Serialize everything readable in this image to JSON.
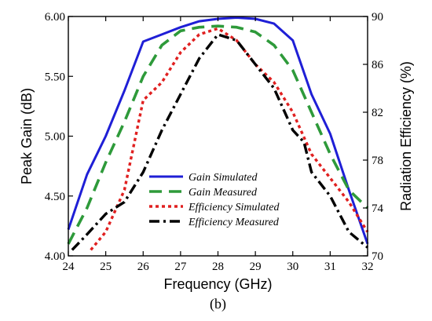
{
  "chart_data": {
    "type": "line",
    "caption": "(b)",
    "xlabel": "Frequency (GHz)",
    "ylabel_left": "Peak Gain (dB)",
    "ylabel_right": "Radiation Efficiency (%)",
    "xlim": [
      24,
      32
    ],
    "ylim_left": [
      4.0,
      6.0
    ],
    "ylim_right": [
      70,
      90
    ],
    "x_ticks": [
      "24",
      "25",
      "26",
      "27",
      "28",
      "29",
      "30",
      "31",
      "32"
    ],
    "y_left_ticks": [
      "4.00",
      "4.50",
      "5.00",
      "5.50",
      "6.00"
    ],
    "y_right_ticks": [
      "70",
      "74",
      "78",
      "82",
      "86",
      "90"
    ],
    "grid": false,
    "legend_position": "center-left",
    "series": [
      {
        "name": "Gain Simulated",
        "axis": "left",
        "color": "#1f1fd6",
        "style": "solid",
        "x": [
          24.0,
          24.5,
          25.0,
          25.5,
          26.0,
          26.5,
          27.0,
          27.5,
          28.0,
          28.5,
          29.0,
          29.5,
          30.0,
          30.5,
          31.0,
          31.5,
          32.0
        ],
        "y": [
          4.22,
          4.68,
          5.0,
          5.38,
          5.79,
          5.85,
          5.91,
          5.96,
          5.98,
          5.99,
          5.98,
          5.94,
          5.8,
          5.35,
          5.02,
          4.55,
          4.1
        ]
      },
      {
        "name": "Gain Measured",
        "axis": "left",
        "color": "#2e9a3a",
        "style": "dash",
        "x": [
          24.0,
          24.5,
          25.0,
          25.5,
          26.0,
          26.5,
          27.0,
          27.5,
          28.0,
          28.5,
          29.0,
          29.5,
          30.0,
          30.5,
          31.0,
          31.5,
          32.0
        ],
        "y": [
          4.1,
          4.4,
          4.78,
          5.12,
          5.5,
          5.76,
          5.88,
          5.91,
          5.92,
          5.91,
          5.87,
          5.76,
          5.55,
          5.2,
          4.85,
          4.55,
          4.4
        ]
      },
      {
        "name": "Efficiency Simulated",
        "axis": "right",
        "color": "#e02020",
        "style": "dot",
        "x": [
          24.6,
          25.0,
          25.5,
          26.0,
          26.5,
          27.0,
          27.5,
          28.0,
          28.5,
          29.0,
          29.5,
          30.0,
          30.5,
          31.0,
          31.5,
          32.0
        ],
        "y": [
          70.5,
          72.0,
          75.5,
          83.0,
          84.5,
          87.0,
          88.5,
          89.0,
          88.0,
          86.0,
          84.5,
          82.0,
          78.5,
          76.5,
          74.5,
          72.0
        ]
      },
      {
        "name": "Efficiency Measured",
        "axis": "right",
        "color": "#000000",
        "style": "dashdot",
        "x": [
          24.1,
          24.5,
          25.0,
          25.5,
          26.0,
          26.5,
          27.0,
          27.5,
          28.0,
          28.5,
          29.0,
          29.5,
          30.0,
          30.3,
          30.5,
          31.0,
          31.5,
          32.0
        ],
        "y": [
          70.5,
          71.8,
          73.5,
          74.5,
          77.0,
          80.5,
          83.5,
          86.5,
          88.5,
          88.0,
          86.0,
          84.0,
          80.5,
          79.5,
          77.0,
          75.0,
          72.0,
          70.7
        ]
      }
    ]
  }
}
